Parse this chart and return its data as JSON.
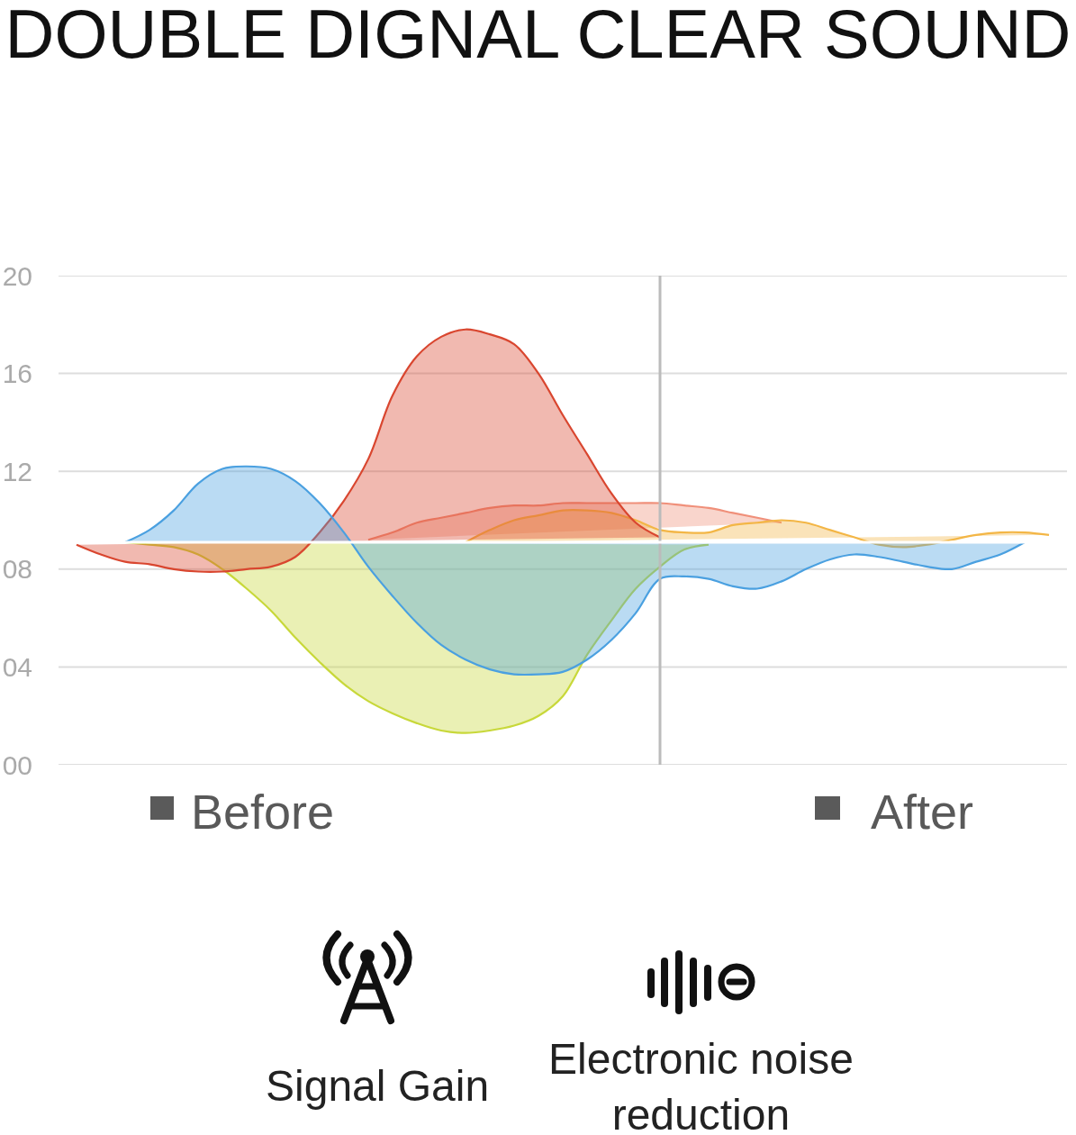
{
  "chart_data": {
    "type": "area",
    "title": "DOUBLE DIGNAL CLEAR SOUND",
    "categories": [
      null,
      null,
      null,
      null,
      null,
      null,
      null,
      null,
      null,
      null,
      null,
      null,
      null,
      null,
      null,
      null,
      null,
      null,
      null,
      null,
      null,
      null,
      null,
      null,
      null,
      null,
      null,
      null,
      null,
      null,
      null,
      null,
      null,
      null,
      null,
      null,
      null,
      null,
      null,
      null,
      null
    ],
    "series": [
      {
        "color": "#f0907a",
        "values": [
          null,
          null,
          null,
          null,
          null,
          null,
          null,
          null,
          null,
          null,
          null,
          null,
          9.2,
          9.5,
          9.9,
          10.1,
          10.3,
          10.5,
          10.6,
          10.6,
          10.7,
          10.7,
          10.7,
          10.7,
          10.7,
          10.6,
          10.5,
          10.3,
          10.1,
          9.9,
          null,
          null,
          null,
          null,
          null,
          null,
          null,
          null,
          null,
          null,
          null
        ]
      },
      {
        "color": "#f3b646",
        "values": [
          null,
          null,
          null,
          null,
          null,
          null,
          null,
          null,
          null,
          null,
          null,
          null,
          null,
          null,
          null,
          null,
          9.1,
          9.6,
          10.0,
          10.2,
          10.4,
          10.4,
          10.3,
          10.0,
          9.6,
          9.5,
          9.5,
          9.8,
          9.9,
          10.0,
          9.9,
          9.6,
          9.3,
          9.0,
          8.9,
          9.0,
          9.2,
          9.4,
          9.5,
          9.5,
          9.4
        ]
      },
      {
        "color": "#c8d83a",
        "values": [
          null,
          null,
          9.1,
          9.0,
          8.9,
          8.6,
          8.0,
          7.2,
          6.3,
          5.2,
          4.2,
          3.3,
          2.6,
          2.1,
          1.7,
          1.4,
          1.3,
          1.4,
          1.6,
          2.0,
          2.8,
          4.5,
          5.9,
          7.2,
          8.1,
          8.8,
          9.0,
          null,
          null,
          null,
          null,
          null,
          null,
          null,
          null,
          null,
          null,
          null,
          null,
          null,
          null
        ]
      },
      {
        "color": "#d9462f",
        "values": [
          9.0,
          8.6,
          8.3,
          8.2,
          8.0,
          7.9,
          7.9,
          8.0,
          8.1,
          8.5,
          9.5,
          10.8,
          12.5,
          15.1,
          16.7,
          17.5,
          17.8,
          17.6,
          17.2,
          16.0,
          14.3,
          12.7,
          11.1,
          9.9,
          9.3,
          null,
          null,
          null,
          null,
          null,
          null,
          null,
          null,
          null,
          null,
          null,
          null,
          null,
          null,
          null,
          null
        ]
      },
      {
        "color": "#4aa0e0",
        "values": [
          null,
          null,
          9.1,
          9.6,
          10.4,
          11.5,
          12.1,
          12.2,
          12.1,
          11.6,
          10.7,
          9.5,
          8.1,
          6.9,
          5.8,
          4.9,
          4.3,
          3.9,
          3.7,
          3.7,
          3.8,
          4.3,
          5.1,
          6.2,
          7.6,
          7.7,
          7.6,
          7.3,
          7.2,
          7.5,
          8.0,
          8.4,
          8.6,
          8.5,
          8.3,
          8.1,
          8.0,
          8.3,
          8.6,
          9.1,
          null
        ]
      }
    ],
    "ylim": [
      0,
      20
    ],
    "yticks": [
      {
        "value": 0,
        "label": "00"
      },
      {
        "value": 4,
        "label": "04"
      },
      {
        "value": 8,
        "label": "08"
      },
      12,
      16,
      20
    ],
    "grid": "y",
    "tick_labels": "y",
    "ref_lines": [
      {
        "axis": "y",
        "value": 9.1,
        "color": "#ffffff"
      }
    ],
    "annotations": [
      "Before",
      "After",
      "Signal Gain",
      "Electronic noise\nreduction"
    ]
  }
}
